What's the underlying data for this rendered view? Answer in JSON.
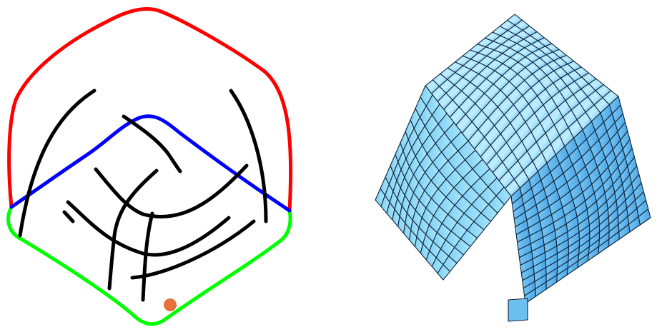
{
  "figure": {
    "left_panel": {
      "description_kind": "sketch-curves",
      "colors": {
        "top_boundary": "#ff0000",
        "middle_boundary": "#0000ff",
        "bottom_boundary": "#00ff00",
        "flow_lines": "#000000",
        "singular_point": "#e8703a"
      }
    },
    "right_panel": {
      "description_kind": "quad-mesh",
      "colors": {
        "face_light": "#bfeeff",
        "face_mid": "#7fd0f5",
        "face_dark": "#4aa6e6",
        "edges": "#10253a"
      }
    }
  }
}
